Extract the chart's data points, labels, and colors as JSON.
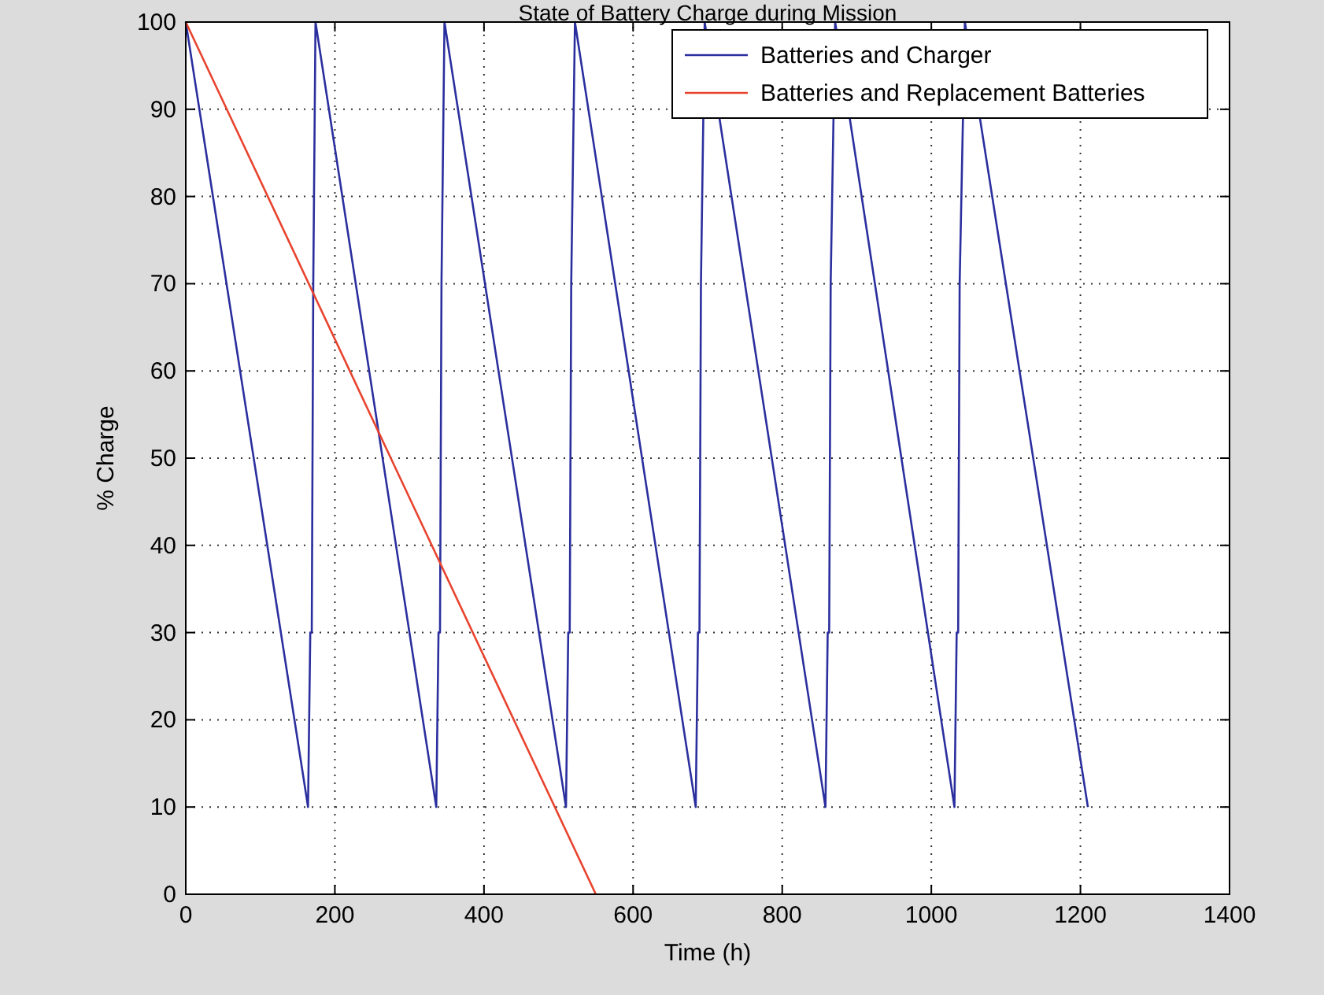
{
  "chart_data": {
    "type": "line",
    "title": "State of Battery Charge during Mission",
    "xlabel": "Time (h)",
    "ylabel": "% Charge",
    "xlim": [
      0,
      1400
    ],
    "ylim": [
      0,
      100
    ],
    "xticks": [
      0,
      200,
      400,
      600,
      800,
      1000,
      1200,
      1400
    ],
    "yticks": [
      0,
      10,
      20,
      30,
      40,
      50,
      60,
      70,
      80,
      90,
      100
    ],
    "grid": true,
    "legend": "top right",
    "line_style": "solid",
    "marker": "none",
    "series": [
      {
        "name": "Batteries and Charger",
        "color": "#2b2f9e",
        "x": [
          0,
          164,
          167,
          169,
          171,
          174,
          336,
          339,
          341,
          343,
          347,
          510,
          513,
          515,
          517,
          522,
          684,
          687,
          689,
          691,
          696,
          858,
          861,
          863,
          865,
          871,
          1031,
          1034,
          1036,
          1038,
          1045,
          1210
        ],
        "values": [
          100,
          10,
          30,
          30,
          70,
          100,
          10,
          30,
          30,
          70,
          100,
          10,
          30,
          30,
          70,
          100,
          10,
          30,
          30,
          70,
          100,
          10,
          30,
          30,
          70,
          100,
          10,
          30,
          30,
          70,
          100,
          10
        ]
      },
      {
        "name": "Batteries and Replacement Batteries",
        "color": "#e8432e",
        "x": [
          0,
          550
        ],
        "values": [
          100,
          0
        ]
      }
    ]
  }
}
